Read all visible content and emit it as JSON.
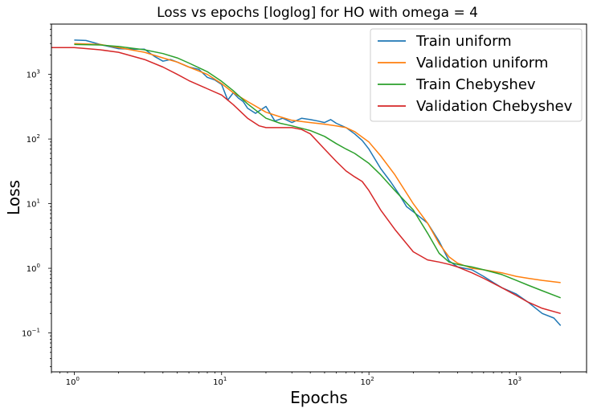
{
  "chart_data": {
    "type": "line",
    "title": "Loss vs epochs [loglog] for HO with omega = 4",
    "xlabel": "Epochs",
    "ylabel": "Loss",
    "xscale": "log",
    "yscale": "log",
    "xlim": [
      0.7,
      3000
    ],
    "ylim": [
      0.025,
      6000
    ],
    "grid": false,
    "legend_position": "top-right",
    "x_ticks": [
      {
        "value": 1,
        "label": "10",
        "exp": "0"
      },
      {
        "value": 10,
        "label": "10",
        "exp": "1"
      },
      {
        "value": 100,
        "label": "10",
        "exp": "2"
      },
      {
        "value": 1000,
        "label": "10",
        "exp": "3"
      }
    ],
    "y_ticks": [
      {
        "value": 0.1,
        "label": "10",
        "exp": "−1"
      },
      {
        "value": 1,
        "label": "10",
        "exp": "0"
      },
      {
        "value": 10,
        "label": "10",
        "exp": "1"
      },
      {
        "value": 100,
        "label": "10",
        "exp": "2"
      },
      {
        "value": 1000,
        "label": "10",
        "exp": "3"
      }
    ],
    "series": [
      {
        "name": "Train uniform",
        "color": "#1f77b4",
        "x": [
          1,
          1.2,
          1.5,
          2,
          2.5,
          3,
          3.5,
          4,
          4.5,
          5,
          6,
          7,
          8,
          9,
          10,
          11,
          12,
          13,
          14,
          15,
          17,
          20,
          23,
          26,
          30,
          35,
          40,
          45,
          50,
          55,
          60,
          70,
          80,
          90,
          100,
          120,
          140,
          160,
          180,
          200,
          250,
          300,
          350,
          400,
          500,
          600,
          700,
          800,
          1000,
          1200,
          1500,
          1800,
          2000
        ],
        "y": [
          3400,
          3350,
          2900,
          2500,
          2450,
          2450,
          1900,
          1600,
          1700,
          1550,
          1300,
          1200,
          900,
          820,
          700,
          400,
          520,
          430,
          380,
          300,
          250,
          320,
          190,
          210,
          180,
          210,
          200,
          190,
          180,
          200,
          175,
          150,
          120,
          95,
          70,
          35,
          22,
          14,
          9,
          7.5,
          5,
          2.6,
          1.3,
          1.05,
          0.95,
          0.75,
          0.6,
          0.5,
          0.4,
          0.3,
          0.2,
          0.17,
          0.13
        ]
      },
      {
        "name": "Validation uniform",
        "color": "#ff7f0e",
        "x": [
          1,
          1.5,
          2,
          3,
          4,
          5,
          6,
          8,
          10,
          12,
          15,
          20,
          25,
          30,
          40,
          50,
          60,
          70,
          80,
          100,
          120,
          150,
          200,
          250,
          300,
          350,
          400,
          500,
          600,
          800,
          1000,
          1200,
          1500,
          2000
        ],
        "y": [
          3000,
          2900,
          2600,
          2200,
          1800,
          1550,
          1300,
          1000,
          720,
          520,
          380,
          260,
          220,
          195,
          180,
          170,
          160,
          150,
          130,
          90,
          55,
          28,
          10,
          5,
          2.4,
          1.5,
          1.2,
          1.0,
          0.95,
          0.85,
          0.75,
          0.7,
          0.65,
          0.6
        ]
      },
      {
        "name": "Train Chebyshev",
        "color": "#2ca02c",
        "x": [
          1,
          1.5,
          2,
          3,
          4,
          5,
          6,
          8,
          10,
          12,
          15,
          20,
          25,
          30,
          40,
          50,
          60,
          70,
          80,
          100,
          120,
          150,
          200,
          250,
          300,
          350,
          400,
          500,
          600,
          800,
          1000,
          1200,
          1500,
          2000
        ],
        "y": [
          2900,
          2850,
          2700,
          2400,
          2100,
          1800,
          1500,
          1100,
          780,
          560,
          350,
          210,
          175,
          160,
          135,
          110,
          85,
          70,
          60,
          42,
          28,
          16,
          8,
          3.5,
          1.7,
          1.25,
          1.15,
          1.05,
          0.95,
          0.8,
          0.65,
          0.55,
          0.45,
          0.35
        ]
      },
      {
        "name": "Validation Chebyshev",
        "color": "#d62728",
        "x": [
          0.7,
          1,
          1.5,
          2,
          3,
          4,
          5,
          6,
          8,
          10,
          12,
          15,
          18,
          20,
          25,
          30,
          35,
          40,
          50,
          60,
          70,
          80,
          90,
          100,
          120,
          150,
          200,
          250,
          300,
          350,
          400,
          500,
          600,
          800,
          1000,
          1200,
          1500,
          2000
        ],
        "y": [
          2600,
          2600,
          2400,
          2200,
          1700,
          1300,
          1000,
          800,
          600,
          480,
          340,
          210,
          160,
          150,
          150,
          150,
          140,
          120,
          70,
          45,
          32,
          26,
          22,
          16,
          8,
          4,
          1.8,
          1.35,
          1.25,
          1.15,
          1.05,
          0.85,
          0.7,
          0.5,
          0.38,
          0.3,
          0.24,
          0.2
        ]
      }
    ]
  }
}
